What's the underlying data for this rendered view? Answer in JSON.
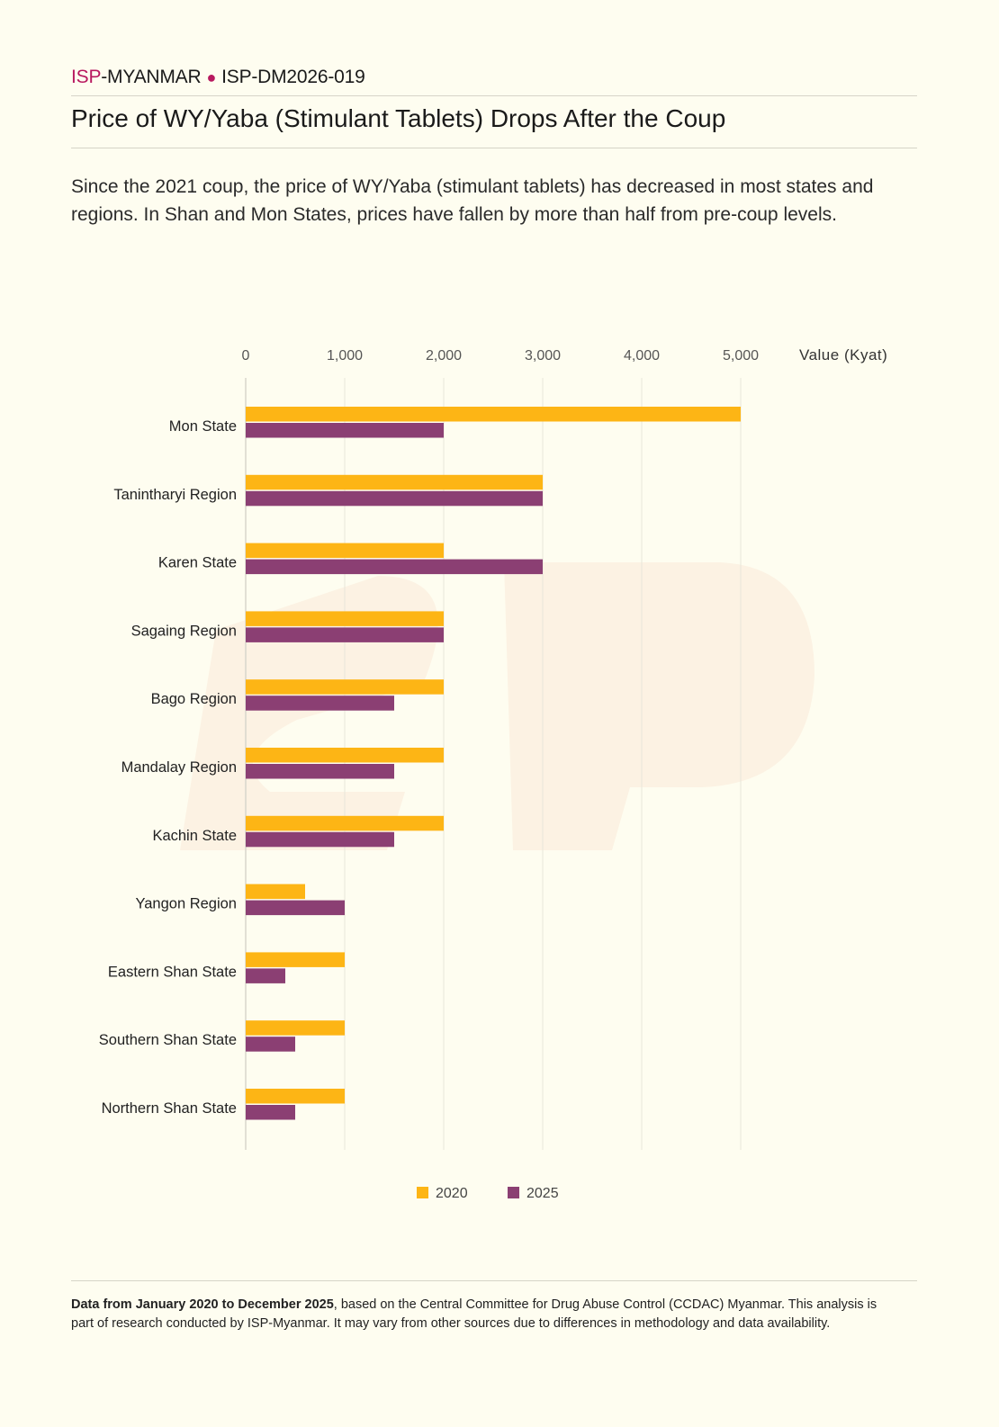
{
  "header": {
    "brand_isp": "ISP",
    "brand_rest": "-MYANMAR",
    "separator": "●",
    "doc_id": "ISP-DM2026-019"
  },
  "title": "Price of WY/Yaba (Stimulant Tablets) Drops After the Coup",
  "subtitle": "Since the 2021 coup, the price of WY/Yaba (stimulant tablets) has decreased in most states and regions. In Shan and Mon States, prices have fallen by more than half from pre-coup levels.",
  "footer": {
    "bold": "Data from January 2020 to December 2025",
    "text": ", based on the Central Committee for Drug Abuse Control (CCDAC) Myanmar. This analysis is part of research conducted by ISP-Myanmar. It may vary from other sources due to differences in methodology and data availability."
  },
  "chart_data": {
    "type": "bar",
    "orientation": "horizontal",
    "xlabel": "Value (Kyat)",
    "xlim": [
      0,
      5000
    ],
    "xticks": [
      0,
      1000,
      2000,
      3000,
      4000,
      5000
    ],
    "xtick_labels": [
      "0",
      "1,000",
      "2,000",
      "3,000",
      "4,000",
      "5,000"
    ],
    "grid": true,
    "legend_position": "bottom",
    "categories": [
      "Mon State",
      "Tanintharyi Region",
      "Karen State",
      "Sagaing Region",
      "Bago Region",
      "Mandalay Region",
      "Kachin State",
      "Yangon Region",
      "Eastern Shan State",
      "Southern Shan State",
      "Northern Shan State"
    ],
    "series": [
      {
        "name": "2020",
        "color": "#fdb515",
        "values": [
          5000,
          3000,
          2000,
          2000,
          2000,
          2000,
          2000,
          600,
          1000,
          1000,
          1000
        ]
      },
      {
        "name": "2025",
        "color": "#8b3f73",
        "values": [
          2000,
          3000,
          3000,
          2000,
          1500,
          1500,
          1500,
          1000,
          400,
          500,
          500
        ]
      }
    ]
  }
}
